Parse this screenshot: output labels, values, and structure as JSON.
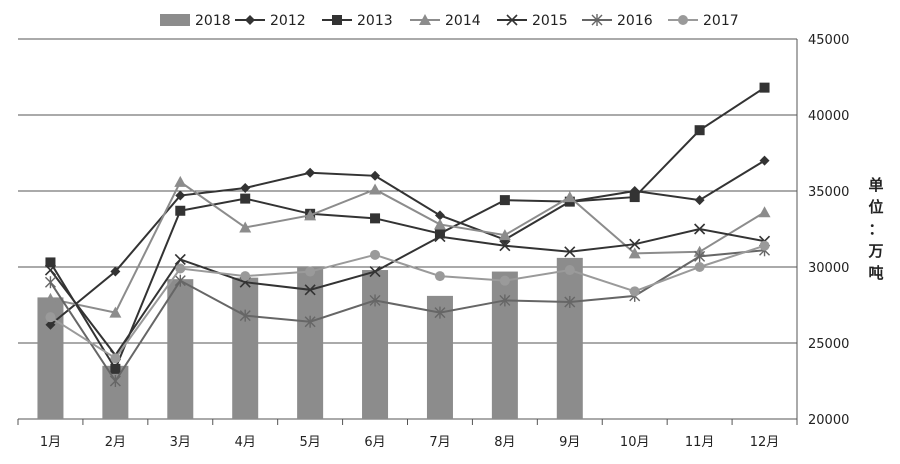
{
  "chart_data": {
    "type": "bar+line",
    "categories": [
      "1月",
      "2月",
      "3月",
      "4月",
      "5月",
      "6月",
      "7月",
      "8月",
      "9月",
      "10月",
      "11月",
      "12月"
    ],
    "y_axis": {
      "side": "right",
      "min": 20000,
      "max": 45000,
      "step": 5000,
      "ticks": [
        "20000",
        "25000",
        "30000",
        "35000",
        "40000",
        "45000"
      ],
      "unit_label": "单位：万吨"
    },
    "grid": true,
    "legend_position": "top",
    "bar_series": {
      "name": "2018",
      "color": "#8c8c8c",
      "values": [
        28000,
        23500,
        29200,
        29300,
        30000,
        29800,
        28100,
        29700,
        30600
      ]
    },
    "line_series": [
      {
        "name": "2012",
        "marker": "diamond",
        "color": "#333333",
        "values": [
          26200,
          29700,
          34700,
          35200,
          36200,
          36000,
          33400,
          31800,
          34300,
          35000,
          34400,
          37000
        ]
      },
      {
        "name": "2013",
        "marker": "square",
        "color": "#333333",
        "values": [
          30300,
          23300,
          33700,
          34500,
          33500,
          33200,
          32200,
          34400,
          34300,
          34600,
          39000,
          41800
        ]
      },
      {
        "name": "2014",
        "marker": "triangle",
        "color": "#8c8c8c",
        "values": [
          27900,
          27000,
          35600,
          32600,
          33400,
          35100,
          32800,
          32100,
          34600,
          30900,
          31000,
          33600
        ]
      },
      {
        "name": "2015",
        "marker": "x",
        "color": "#333333",
        "values": [
          29800,
          24200,
          30500,
          29000,
          28500,
          29700,
          32000,
          31400,
          31000,
          31500,
          32500,
          31700
        ]
      },
      {
        "name": "2016",
        "marker": "asterisk",
        "color": "#666666",
        "values": [
          29000,
          22500,
          29100,
          26800,
          26400,
          27800,
          27000,
          27800,
          27700,
          28100,
          30700,
          31100
        ]
      },
      {
        "name": "2017",
        "marker": "circle",
        "color": "#9a9a9a",
        "values": [
          26700,
          24000,
          29900,
          29400,
          29700,
          30800,
          29400,
          29100,
          29800,
          28400,
          30000,
          31400
        ]
      }
    ],
    "legend_order": [
      "2018",
      "2012",
      "2013",
      "2014",
      "2015",
      "2016",
      "2017"
    ]
  }
}
